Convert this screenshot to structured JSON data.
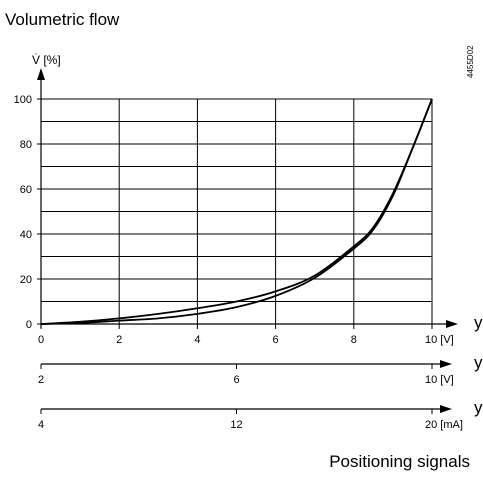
{
  "chart_data": {
    "type": "line",
    "title": "Volumetric flow",
    "ylabel": "V̇ [%]",
    "xlabel": "Positioning signals",
    "ref_code": "4455D02",
    "ylim": [
      0,
      100
    ],
    "xlim": [
      0,
      10
    ],
    "yticks": [
      "0",
      "20",
      "40",
      "60",
      "80",
      "100"
    ],
    "grid": true,
    "axes": [
      {
        "name": "y",
        "ticks": [
          "0",
          "2",
          "4",
          "6",
          "8",
          "10 [V]"
        ]
      },
      {
        "name": "y",
        "ticks": [
          "2",
          "6",
          "10 [V]"
        ]
      },
      {
        "name": "y",
        "ticks": [
          "4",
          "12",
          "20 [mA]"
        ]
      }
    ],
    "series": [
      {
        "x": [
          0,
          1,
          2,
          3,
          4,
          5,
          6,
          7,
          8,
          8.5,
          9,
          9.5,
          10
        ],
        "values": [
          0,
          1,
          2.5,
          4.5,
          7,
          10,
          14.5,
          21.5,
          34.5,
          43,
          58,
          78,
          100
        ]
      },
      {
        "x": [
          0,
          1,
          2,
          3,
          4,
          5,
          6,
          7,
          8,
          8.5,
          9,
          9.5,
          10
        ],
        "values": [
          0,
          0.5,
          1.5,
          2.5,
          4.5,
          7.5,
          12.5,
          20.5,
          33.5,
          42,
          57,
          78,
          100
        ]
      }
    ]
  }
}
